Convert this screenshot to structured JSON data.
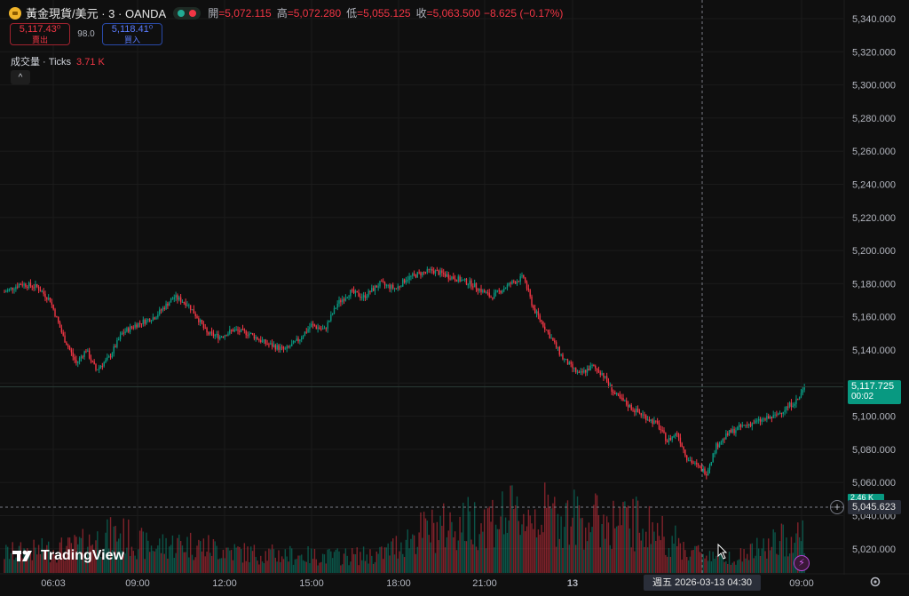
{
  "symbol": {
    "title": "黃金現貨/美元 · 3 · OANDA",
    "icon": "gold-bar-icon"
  },
  "ohlc": {
    "open_label": "開",
    "open": "=5,072.115",
    "high_label": "高",
    "high": "=5,072.280",
    "low_label": "低",
    "low": "=5,055.125",
    "close_label": "收",
    "close": "=5,063.500",
    "change": "−8.625 (−0.17%)"
  },
  "trade": {
    "sell_price": "5,117.43⁰",
    "sell_label": "賣出",
    "spread": "98.0",
    "buy_price": "5,118.41⁰",
    "buy_label": "買入"
  },
  "volume_legend": {
    "label": "成交量 · Ticks",
    "value": "3.71 K"
  },
  "price_axis": {
    "ticks": [
      "5,340.000",
      "5,320.000",
      "5,300.000",
      "5,280.000",
      "5,260.000",
      "5,240.000",
      "5,220.000",
      "5,200.000",
      "5,180.000",
      "5,160.000",
      "5,140.000",
      "5,120.000",
      "5,100.000",
      "5,080.000",
      "5,060.000",
      "5,040.000",
      "5,020.000"
    ],
    "current_price": "5,117.725",
    "countdown": "00:02",
    "volume_tag": "2.46 K",
    "crosshair_price": "5,045.623"
  },
  "time_axis": {
    "labels": [
      "06:03",
      "09:00",
      "12:00",
      "15:00",
      "18:00",
      "21:00",
      "13",
      "09:00"
    ],
    "crosshair_time": "週五 2026-03-13   04:30"
  },
  "brand": "TradingView",
  "colors": {
    "up": "#089981",
    "down": "#f23645",
    "background": "#0f0f0f",
    "grid": "#1b1b1b"
  },
  "chart_data": {
    "type": "candlestick",
    "ylim": [
      5010,
      5350
    ],
    "price_path": [
      [
        0,
        5175
      ],
      [
        10,
        5180
      ],
      [
        20,
        5178
      ],
      [
        28,
        5170
      ],
      [
        36,
        5148
      ],
      [
        44,
        5132
      ],
      [
        50,
        5140
      ],
      [
        56,
        5128
      ],
      [
        64,
        5135
      ],
      [
        72,
        5150
      ],
      [
        80,
        5155
      ],
      [
        92,
        5160
      ],
      [
        104,
        5172
      ],
      [
        112,
        5168
      ],
      [
        118,
        5160
      ],
      [
        124,
        5150
      ],
      [
        132,
        5148
      ],
      [
        140,
        5152
      ],
      [
        150,
        5150
      ],
      [
        160,
        5144
      ],
      [
        172,
        5140
      ],
      [
        180,
        5146
      ],
      [
        188,
        5155
      ],
      [
        196,
        5152
      ],
      [
        204,
        5168
      ],
      [
        212,
        5175
      ],
      [
        220,
        5172
      ],
      [
        230,
        5180
      ],
      [
        240,
        5177
      ],
      [
        246,
        5183
      ],
      [
        254,
        5186
      ],
      [
        262,
        5188
      ],
      [
        274,
        5184
      ],
      [
        286,
        5180
      ],
      [
        298,
        5172
      ],
      [
        310,
        5180
      ],
      [
        318,
        5184
      ],
      [
        324,
        5165
      ],
      [
        332,
        5152
      ],
      [
        342,
        5135
      ],
      [
        352,
        5125
      ],
      [
        360,
        5130
      ],
      [
        366,
        5126
      ],
      [
        374,
        5113
      ],
      [
        384,
        5105
      ],
      [
        392,
        5100
      ],
      [
        400,
        5095
      ],
      [
        406,
        5085
      ],
      [
        412,
        5090
      ],
      [
        418,
        5075
      ],
      [
        424,
        5070
      ],
      [
        430,
        5066
      ],
      [
        436,
        5082
      ],
      [
        444,
        5090
      ],
      [
        452,
        5094
      ],
      [
        462,
        5097
      ],
      [
        472,
        5100
      ],
      [
        480,
        5106
      ],
      [
        486,
        5110
      ],
      [
        490,
        5117
      ]
    ],
    "volume_profile": [
      [
        0,
        1.2
      ],
      [
        40,
        1.5
      ],
      [
        70,
        2.4
      ],
      [
        88,
        1.6
      ],
      [
        110,
        1.8
      ],
      [
        150,
        1.2
      ],
      [
        200,
        1.0
      ],
      [
        230,
        1.1
      ],
      [
        255,
        2.5
      ],
      [
        280,
        3.0
      ],
      [
        300,
        3.4
      ],
      [
        330,
        3.6
      ],
      [
        360,
        3.2
      ],
      [
        392,
        3.0
      ],
      [
        406,
        2.2
      ],
      [
        420,
        1.3
      ],
      [
        450,
        1.0
      ],
      [
        490,
        2.46
      ]
    ]
  }
}
